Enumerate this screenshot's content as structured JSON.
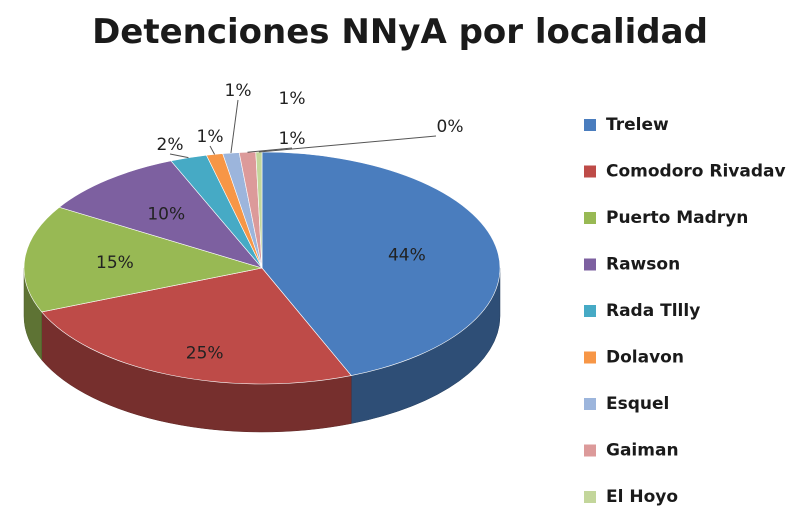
{
  "chart_data": {
    "type": "pie",
    "title": "Detenciones NNyA por localidad",
    "categories": [
      "Trelew",
      "Comodoro Rivadav",
      "Puerto Madryn",
      "Rawson",
      "Rada  Tllly",
      "Dolavon",
      "Esquel",
      "Gaiman",
      "El Hoyo"
    ],
    "values": [
      44,
      25,
      15,
      10,
      2,
      1,
      1,
      1,
      0
    ],
    "labels": [
      "44%",
      "25%",
      "15%",
      "10%",
      "2%",
      "1%",
      "1%",
      "1%",
      "0%"
    ],
    "colors": [
      "#4a7dbe",
      "#be4b48",
      "#98b954",
      "#7d60a0",
      "#46aac5",
      "#f79646",
      "#9cb5dc",
      "#dc9a9a",
      "#c3d69b"
    ],
    "legend_position": "right",
    "style": "3d"
  }
}
